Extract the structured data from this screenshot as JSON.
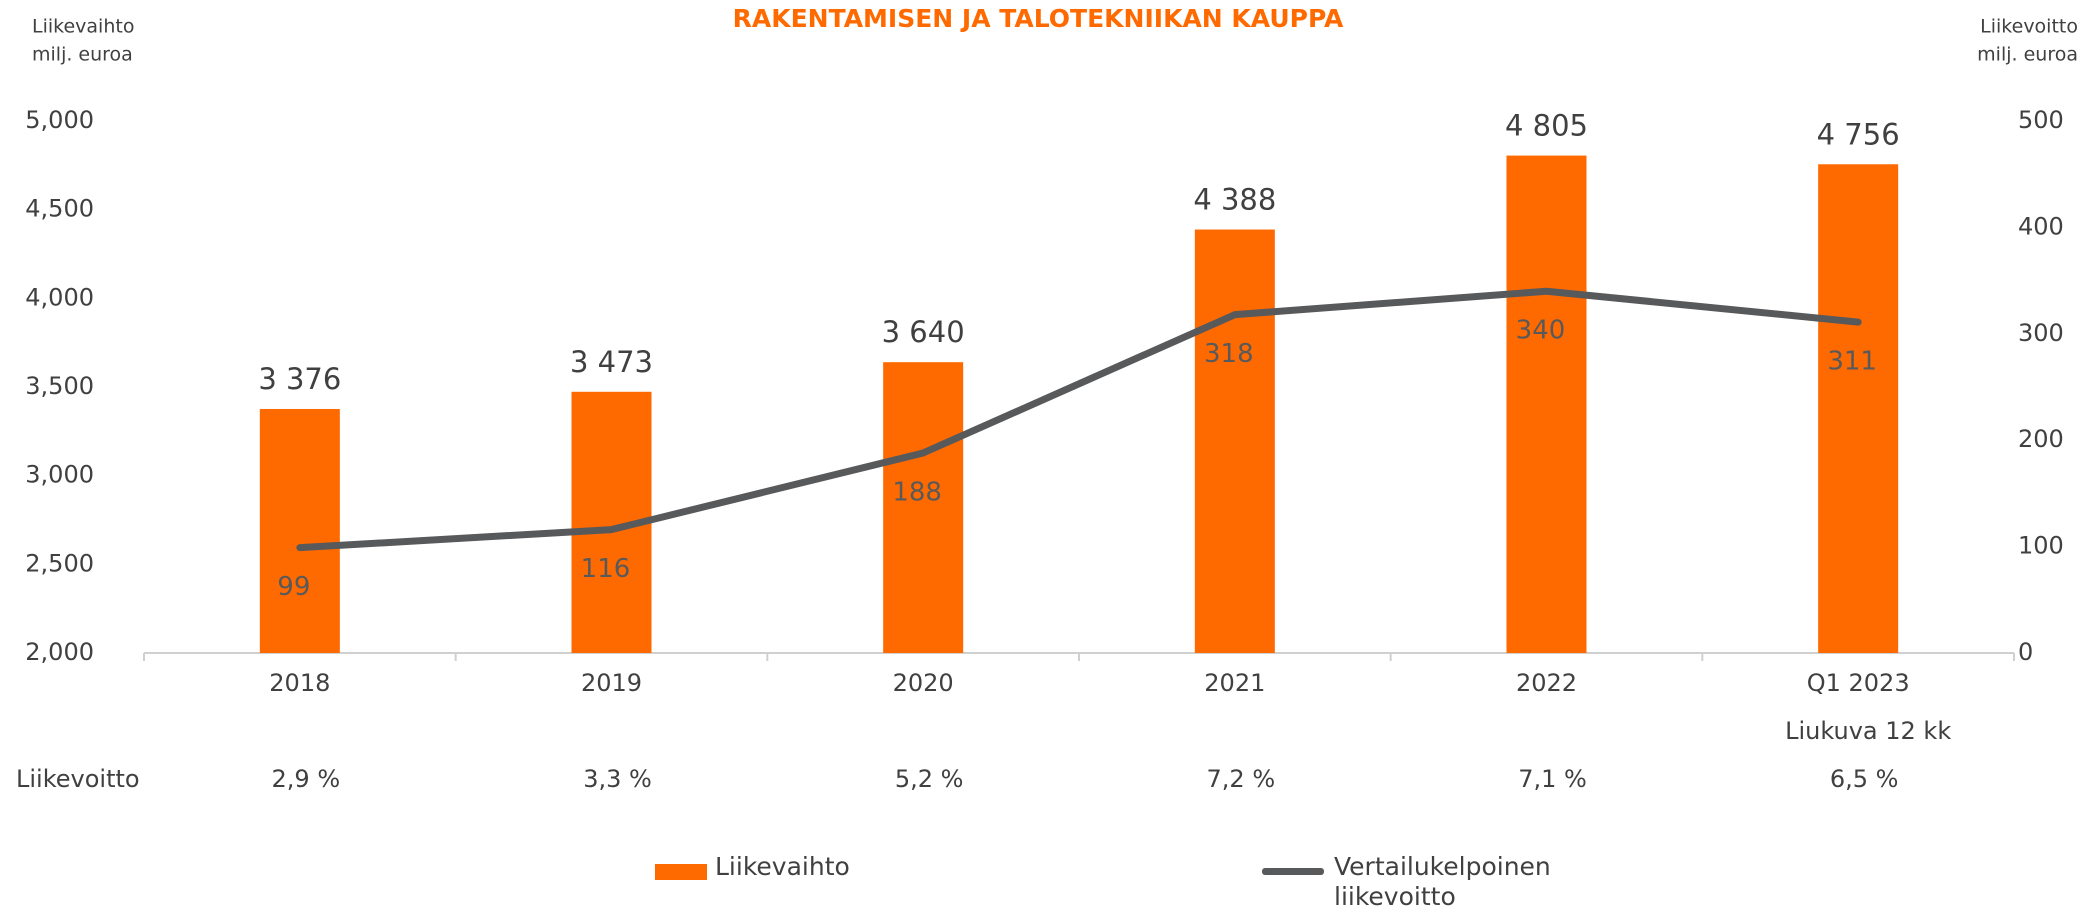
{
  "chart_data": {
    "type": "bar",
    "title": "RAKENTAMISEN JA TALOTEKNIIKAN KAUPPA",
    "ylabel": [
      "Liikevaihto",
      "milj. euroa"
    ],
    "y2label": [
      "Liikevoitto",
      "milj. euroa"
    ],
    "categories": [
      "2018",
      "2019",
      "2020",
      "2021",
      "2022",
      "Q1 2023"
    ],
    "category_note": "Liukuva 12 kk",
    "series": [
      {
        "name": "Liikevaihto",
        "type": "bar",
        "color": "#ff6a00",
        "axis": "y",
        "values": [
          3376,
          3473,
          3640,
          4388,
          4805,
          4756
        ],
        "value_labels": [
          "3 376",
          "3 473",
          "3 640",
          "4 388",
          "4 805",
          "4 756"
        ]
      },
      {
        "name": "Vertailukelpoinen liikevoitto",
        "type": "line",
        "color": "#58595b",
        "axis": "y2",
        "values": [
          99,
          116,
          188,
          318,
          340,
          311
        ]
      }
    ],
    "ylim": [
      2000,
      5000
    ],
    "yticks": [
      {
        "value": 2000,
        "label": "2,000"
      },
      {
        "value": 2500,
        "label": "2,500"
      },
      {
        "value": 3000,
        "label": "3,000"
      },
      {
        "value": 3500,
        "label": "3,500"
      },
      {
        "value": 4000,
        "label": "4,000"
      },
      {
        "value": 4500,
        "label": "4,500"
      },
      {
        "value": 5000,
        "label": "5,000"
      }
    ],
    "y2lim": [
      0,
      500
    ],
    "y2ticks": [
      0,
      100,
      200,
      300,
      400,
      500
    ],
    "margin_row": {
      "label": "Liikevoitto",
      "labels": [
        "2,9 %",
        "3,3 %",
        "5,2 %",
        "7,2 %",
        "7,1 %",
        "6,5 %"
      ]
    },
    "grid": false,
    "legend": "bottom"
  }
}
